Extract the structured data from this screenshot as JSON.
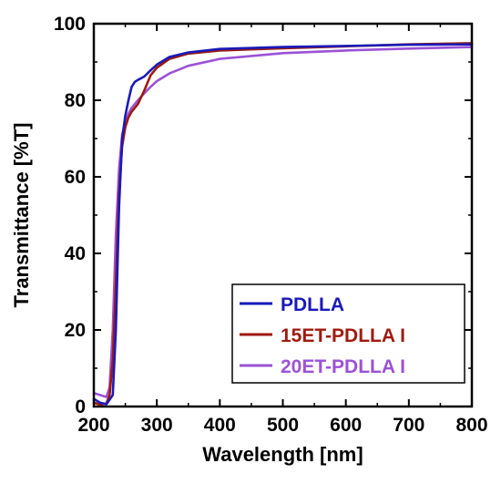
{
  "chart_data": {
    "type": "line",
    "xlabel": "Wavelength [nm]",
    "ylabel": "Transmittance [%T]",
    "xlim": [
      200,
      800
    ],
    "ylim": [
      0,
      100
    ],
    "xticks": [
      200,
      300,
      400,
      500,
      600,
      700,
      800
    ],
    "yticks": [
      0,
      20,
      40,
      60,
      80,
      100
    ],
    "grid": false,
    "legend_position": "bottom-right",
    "series": [
      {
        "name": "PDLLA",
        "color": "#1a1ab8",
        "x": [
          200,
          210,
          220,
          230,
          235,
          240,
          245,
          250,
          255,
          260,
          265,
          270,
          280,
          290,
          300,
          320,
          350,
          400,
          500,
          600,
          700,
          800
        ],
        "y": [
          2.0,
          1.0,
          0.6,
          3.0,
          20.0,
          52.0,
          70.0,
          76.0,
          80.0,
          83.5,
          84.8,
          85.3,
          86.2,
          87.8,
          89.3,
          91.3,
          92.5,
          93.4,
          93.9,
          94.2,
          94.5,
          94.6
        ]
      },
      {
        "name": "15ET-PDLLA I",
        "color": "#9e1a0e",
        "x": [
          200,
          210,
          220,
          225,
          230,
          235,
          240,
          245,
          250,
          255,
          260,
          270,
          280,
          290,
          300,
          320,
          350,
          400,
          500,
          600,
          700,
          800
        ],
        "y": [
          1.0,
          0.5,
          0.8,
          3.0,
          12.0,
          32.0,
          56.0,
          68.0,
          73.0,
          75.5,
          77.0,
          79.0,
          82.5,
          86.5,
          88.5,
          90.8,
          92.2,
          93.0,
          93.6,
          94.1,
          94.6,
          94.9
        ]
      },
      {
        "name": "20ET-PDLLA I",
        "color": "#9b52d6",
        "x": [
          200,
          210,
          220,
          225,
          230,
          235,
          240,
          245,
          250,
          255,
          260,
          270,
          280,
          290,
          300,
          320,
          350,
          400,
          500,
          600,
          700,
          800
        ],
        "y": [
          3.5,
          3.0,
          2.5,
          5.0,
          20.0,
          45.0,
          62.0,
          71.0,
          74.0,
          76.5,
          78.0,
          80.0,
          81.8,
          83.5,
          85.0,
          87.0,
          89.0,
          90.8,
          92.3,
          93.0,
          93.5,
          93.9
        ]
      }
    ]
  }
}
